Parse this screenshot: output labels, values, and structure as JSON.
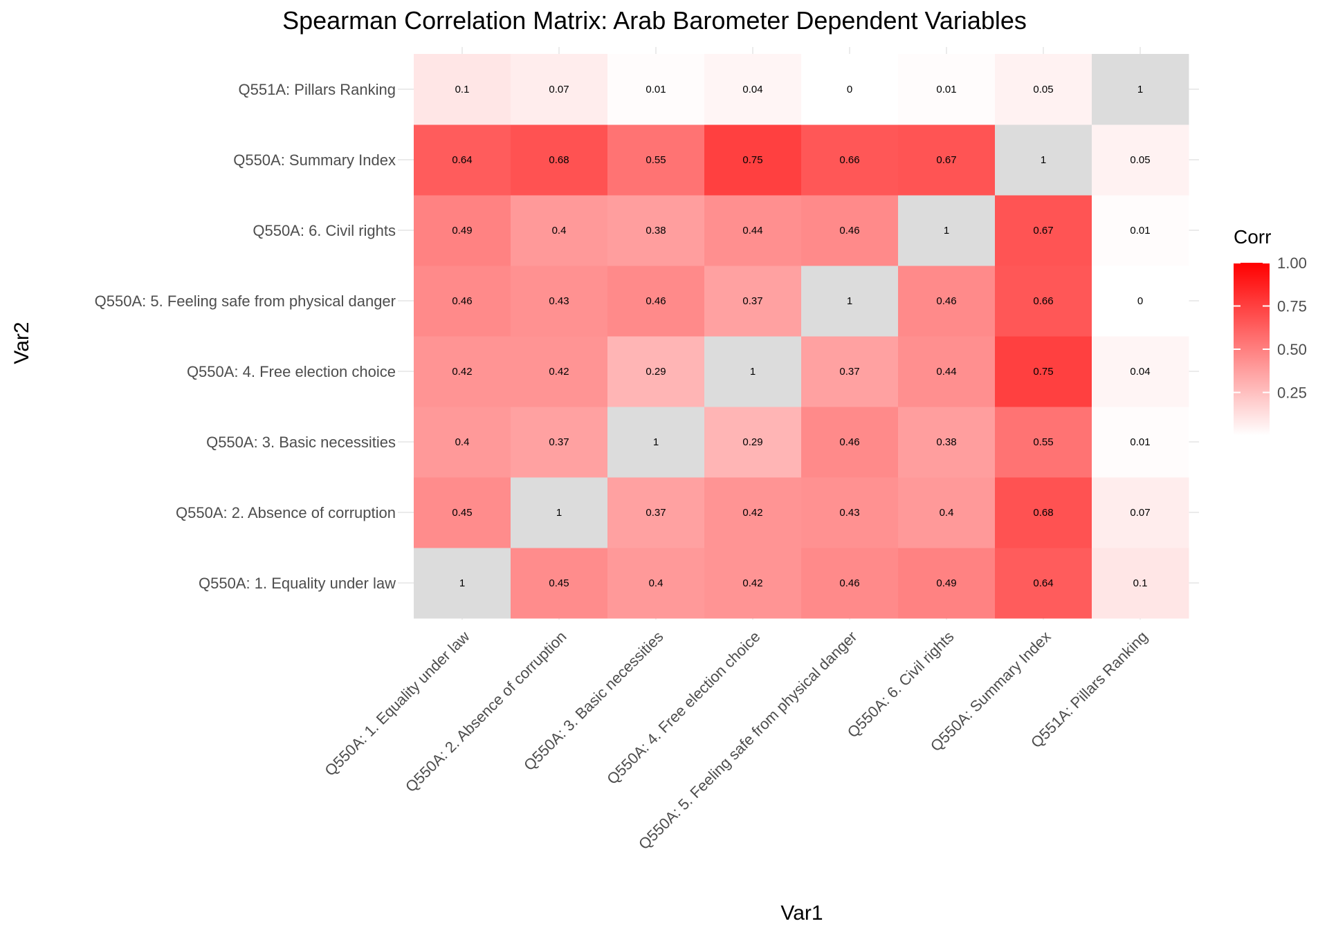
{
  "chart_data": {
    "type": "heatmap",
    "title": "Spearman Correlation Matrix: Arab Barometer Dependent Variables",
    "xlabel": "Var1",
    "ylabel": "Var2",
    "categories": [
      "Q550A: 1. Equality under law",
      "Q550A: 2. Absence of corruption",
      "Q550A: 3. Basic necessities",
      "Q550A: 4. Free election choice",
      "Q550A: 5. Feeling safe from physical danger",
      "Q550A: 6. Civil rights",
      "Q550A: Summary Index",
      "Q551A: Pillars Ranking"
    ],
    "matrix": [
      [
        1,
        0.45,
        0.4,
        0.42,
        0.46,
        0.49,
        0.64,
        0.1
      ],
      [
        0.45,
        1,
        0.37,
        0.42,
        0.43,
        0.4,
        0.68,
        0.07
      ],
      [
        0.4,
        0.37,
        1,
        0.29,
        0.46,
        0.38,
        0.55,
        0.01
      ],
      [
        0.42,
        0.42,
        0.29,
        1,
        0.37,
        0.44,
        0.75,
        0.04
      ],
      [
        0.46,
        0.43,
        0.46,
        0.37,
        1,
        0.46,
        0.66,
        0
      ],
      [
        0.49,
        0.4,
        0.38,
        0.44,
        0.46,
        1,
        0.67,
        0.01
      ],
      [
        0.64,
        0.68,
        0.55,
        0.75,
        0.66,
        0.67,
        1,
        0.05
      ],
      [
        0.1,
        0.07,
        0.01,
        0.04,
        0,
        0.01,
        0.05,
        1
      ]
    ],
    "legend": {
      "title": "Corr",
      "ticks": [
        0.25,
        0.5,
        0.75,
        1.0
      ],
      "tick_labels": [
        "0.25",
        "0.50",
        "0.75",
        "1.00"
      ],
      "placement": "right"
    },
    "colors": {
      "low": "#ffffff",
      "high": "#ff0000",
      "diagonal": "#dcdcdc",
      "gridline": "#ebebeb"
    },
    "grid": true
  }
}
